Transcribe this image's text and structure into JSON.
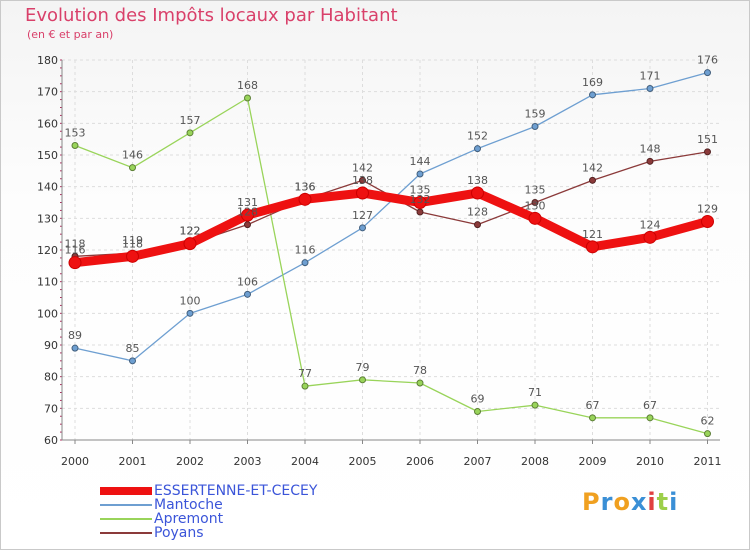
{
  "title": "Evolution des Impôts locaux par Habitant",
  "subtitle": "(en € et par an)",
  "logo": {
    "letters": [
      "P",
      "r",
      "o",
      "x",
      "i",
      "t",
      "i"
    ],
    "colors": [
      "#f0a020",
      "#3a8fd6",
      "#f0a020",
      "#3a8fd6",
      "#e04040",
      "#9dcf4a",
      "#3a8fd6"
    ]
  },
  "chart_data": {
    "type": "line",
    "title": "Evolution des Impôts locaux par Habitant",
    "subtitle": "(en € et par an)",
    "xlabel": "",
    "ylabel": "",
    "ylim": [
      60,
      180
    ],
    "yticks": [
      "60",
      "70",
      "80",
      "90",
      "100",
      "110",
      "120",
      "130",
      "140",
      "150",
      "160",
      "170",
      "180"
    ],
    "categories": [
      "2000",
      "2001",
      "2002",
      "2003",
      "2004",
      "2005",
      "2006",
      "2007",
      "2008",
      "2009",
      "2010",
      "2011"
    ],
    "legend_position": "bottom-left",
    "series": [
      {
        "name": "ESSERTENNE-ET-CECEY",
        "color": "#ee1111",
        "width": "thick",
        "values": [
          116,
          118,
          122,
          131,
          136,
          138,
          135,
          138,
          130,
          121,
          124,
          129
        ],
        "labels": [
          "116",
          "118",
          "122",
          "131",
          "136",
          "138",
          "135",
          "138",
          "130",
          "121",
          "124",
          "129"
        ]
      },
      {
        "name": "Mantoche",
        "color": "#6e9fd1",
        "width": "thin",
        "values": [
          89,
          85,
          100,
          106,
          116,
          127,
          144,
          152,
          159,
          169,
          171,
          176
        ],
        "labels": [
          "89",
          "85",
          "100",
          "106",
          "116",
          "127",
          "144",
          "152",
          "159",
          "169",
          "171",
          "176"
        ]
      },
      {
        "name": "Apremont",
        "color": "#99d45a",
        "width": "thin",
        "values": [
          153,
          146,
          157,
          168,
          77,
          79,
          78,
          69,
          71,
          67,
          67,
          62
        ],
        "labels": [
          "153",
          "146",
          "157",
          "168",
          "77",
          "79",
          "78",
          "69",
          "71",
          "67",
          "67",
          "62"
        ]
      },
      {
        "name": "Poyans",
        "color": "#8b3a3a",
        "width": "thin",
        "values": [
          118,
          119,
          122,
          128,
          136,
          142,
          132,
          128,
          135,
          142,
          148,
          151
        ],
        "labels": [
          "118",
          "119",
          "122",
          "128",
          "136",
          "142",
          "132",
          "128",
          "135",
          "142",
          "148",
          "151"
        ]
      }
    ]
  }
}
